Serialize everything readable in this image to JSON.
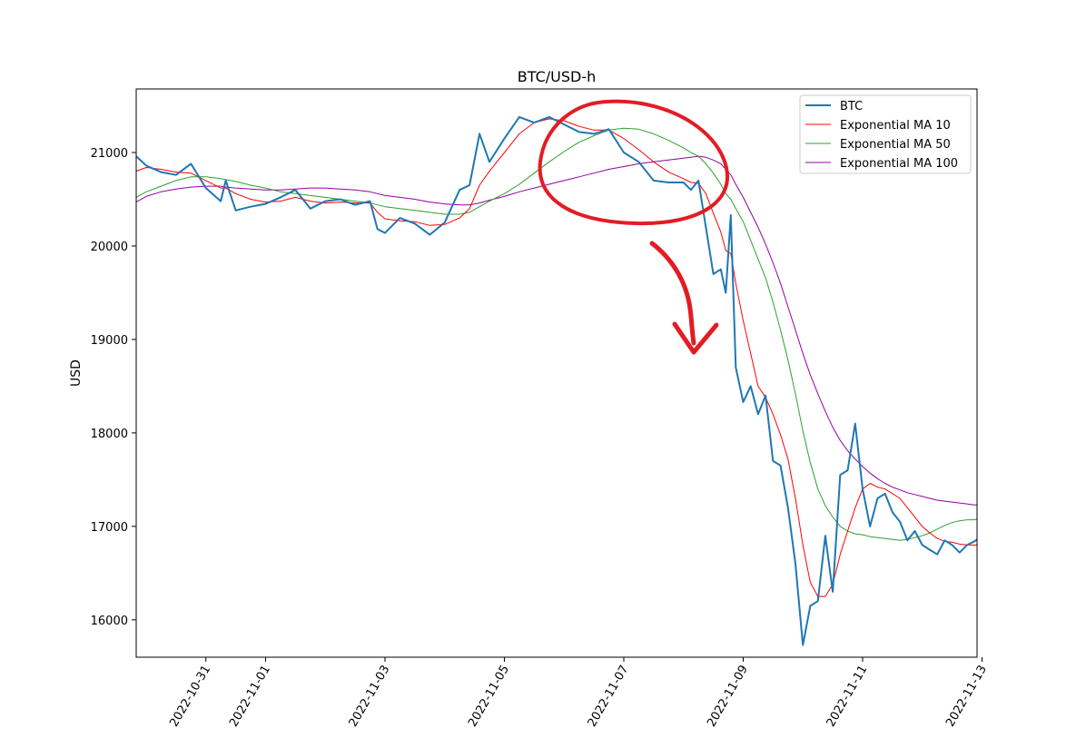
{
  "chart_data": {
    "type": "line",
    "title": "BTC/USD-h",
    "xlabel": "",
    "ylabel": "USD",
    "xlim": [
      "2022-10-29T20:00",
      "2022-11-12T22:00"
    ],
    "ylim": [
      15600,
      21680
    ],
    "x_ticks": [
      "2022-10-31",
      "2022-11-01",
      "2022-11-03",
      "2022-11-05",
      "2022-11-07",
      "2022-11-09",
      "2022-11-11",
      "2022-11-13"
    ],
    "y_ticks": [
      16000,
      17000,
      18000,
      19000,
      20000,
      21000
    ],
    "grid": false,
    "legend": "top-right",
    "x": [
      "2022-10-29T20:00",
      "2022-10-30T00:00",
      "2022-10-30T06:00",
      "2022-10-30T12:00",
      "2022-10-30T18:00",
      "2022-10-31T00:00",
      "2022-10-31T06:00",
      "2022-10-31T08:00",
      "2022-10-31T12:00",
      "2022-10-31T18:00",
      "2022-11-01T00:00",
      "2022-11-01T06:00",
      "2022-11-01T12:00",
      "2022-11-01T18:00",
      "2022-11-02T00:00",
      "2022-11-02T06:00",
      "2022-11-02T12:00",
      "2022-11-02T18:00",
      "2022-11-02T21:00",
      "2022-11-03T00:00",
      "2022-11-03T06:00",
      "2022-11-03T12:00",
      "2022-11-03T18:00",
      "2022-11-04T00:00",
      "2022-11-04T06:00",
      "2022-11-04T10:00",
      "2022-11-04T14:00",
      "2022-11-04T18:00",
      "2022-11-05T00:00",
      "2022-11-05T06:00",
      "2022-11-05T12:00",
      "2022-11-05T18:00",
      "2022-11-06T00:00",
      "2022-11-06T06:00",
      "2022-11-06T12:00",
      "2022-11-06T18:00",
      "2022-11-07T00:00",
      "2022-11-07T06:00",
      "2022-11-07T12:00",
      "2022-11-07T18:00",
      "2022-11-08T00:00",
      "2022-11-08T03:00",
      "2022-11-08T06:00",
      "2022-11-08T09:00",
      "2022-11-08T12:00",
      "2022-11-08T15:00",
      "2022-11-08T17:00",
      "2022-11-08T19:00",
      "2022-11-08T21:00",
      "2022-11-09T00:00",
      "2022-11-09T03:00",
      "2022-11-09T06:00",
      "2022-11-09T09:00",
      "2022-11-09T12:00",
      "2022-11-09T15:00",
      "2022-11-09T18:00",
      "2022-11-09T21:00",
      "2022-11-10T00:00",
      "2022-11-10T03:00",
      "2022-11-10T06:00",
      "2022-11-10T09:00",
      "2022-11-10T12:00",
      "2022-11-10T15:00",
      "2022-11-10T18:00",
      "2022-11-10T21:00",
      "2022-11-11T00:00",
      "2022-11-11T03:00",
      "2022-11-11T06:00",
      "2022-11-11T09:00",
      "2022-11-11T12:00",
      "2022-11-11T15:00",
      "2022-11-11T18:00",
      "2022-11-11T21:00",
      "2022-11-12T00:00",
      "2022-11-12T03:00",
      "2022-11-12T06:00",
      "2022-11-12T09:00",
      "2022-11-12T12:00",
      "2022-11-12T15:00",
      "2022-11-12T18:00",
      "2022-11-12T21:00",
      "2022-11-12T22:00"
    ],
    "series": [
      {
        "name": "BTC",
        "color": "#1f77b4",
        "values": [
          20960,
          20860,
          20790,
          20760,
          20880,
          20620,
          20480,
          20700,
          20380,
          20420,
          20450,
          20520,
          20600,
          20400,
          20480,
          20500,
          20440,
          20480,
          20180,
          20140,
          20300,
          20240,
          20120,
          20250,
          20600,
          20650,
          21200,
          20900,
          21150,
          21380,
          21320,
          21380,
          21300,
          21220,
          21200,
          21250,
          21000,
          20900,
          20700,
          20680,
          20680,
          20600,
          20700,
          20200,
          19700,
          19750,
          19500,
          20330,
          18700,
          18330,
          18500,
          18200,
          18400,
          17700,
          17650,
          17200,
          16600,
          15730,
          16150,
          16200,
          16900,
          16300,
          17550,
          17600,
          18100,
          17400,
          17000,
          17300,
          17350,
          17150,
          17050,
          16850,
          16950,
          16800,
          16750,
          16700,
          16850,
          16800,
          16720,
          16800,
          16840,
          16860
        ]
      },
      {
        "name": "Exponential MA 10",
        "color": "#ff0000",
        "values": [
          20800,
          20840,
          20820,
          20790,
          20780,
          20700,
          20620,
          20620,
          20560,
          20500,
          20470,
          20480,
          20520,
          20480,
          20460,
          20470,
          20460,
          20460,
          20360,
          20290,
          20270,
          20260,
          20220,
          20230,
          20300,
          20400,
          20650,
          20800,
          21000,
          21200,
          21320,
          21360,
          21340,
          21280,
          21240,
          21240,
          21150,
          21030,
          20900,
          20790,
          20720,
          20680,
          20670,
          20560,
          20350,
          20150,
          19950,
          19920,
          19600,
          19200,
          18850,
          18500,
          18380,
          18200,
          17980,
          17720,
          17300,
          16800,
          16400,
          16250,
          16250,
          16380,
          16700,
          16950,
          17200,
          17400,
          17460,
          17420,
          17400,
          17350,
          17300,
          17200,
          17100,
          17000,
          16930,
          16870,
          16840,
          16830,
          16810,
          16800,
          16800,
          16800
        ]
      },
      {
        "name": "Exponential MA 50",
        "color": "#2ca02c",
        "values": [
          20520,
          20580,
          20640,
          20700,
          20740,
          20740,
          20720,
          20710,
          20690,
          20650,
          20620,
          20580,
          20560,
          20540,
          20520,
          20500,
          20480,
          20460,
          20440,
          20420,
          20400,
          20380,
          20360,
          20340,
          20340,
          20360,
          20420,
          20480,
          20560,
          20660,
          20780,
          20900,
          21010,
          21110,
          21180,
          21240,
          21260,
          21250,
          21200,
          21130,
          21050,
          21000,
          20960,
          20880,
          20780,
          20660,
          20560,
          20500,
          20400,
          20260,
          20060,
          19860,
          19660,
          19400,
          19100,
          18780,
          18420,
          18020,
          17680,
          17400,
          17220,
          17100,
          17000,
          16950,
          16920,
          16910,
          16890,
          16880,
          16870,
          16860,
          16850,
          16860,
          16880,
          16900,
          16930,
          16970,
          17010,
          17040,
          17060,
          17070,
          17070,
          17080
        ]
      },
      {
        "name": "Exponential MA 100",
        "color": "#9400a0",
        "values": [
          20470,
          20530,
          20580,
          20610,
          20630,
          20640,
          20640,
          20630,
          20620,
          20610,
          20600,
          20600,
          20610,
          20620,
          20620,
          20610,
          20600,
          20580,
          20560,
          20540,
          20520,
          20500,
          20470,
          20450,
          20440,
          20440,
          20460,
          20490,
          20530,
          20580,
          20620,
          20660,
          20700,
          20740,
          20780,
          20820,
          20850,
          20880,
          20900,
          20920,
          20940,
          20950,
          20960,
          20950,
          20920,
          20880,
          20820,
          20760,
          20660,
          20520,
          20360,
          20200,
          20020,
          19820,
          19600,
          19350,
          19100,
          18850,
          18620,
          18420,
          18230,
          18060,
          17920,
          17810,
          17720,
          17640,
          17570,
          17510,
          17460,
          17420,
          17390,
          17360,
          17340,
          17320,
          17300,
          17280,
          17270,
          17260,
          17250,
          17240,
          17230,
          17230
        ]
      }
    ]
  }
}
